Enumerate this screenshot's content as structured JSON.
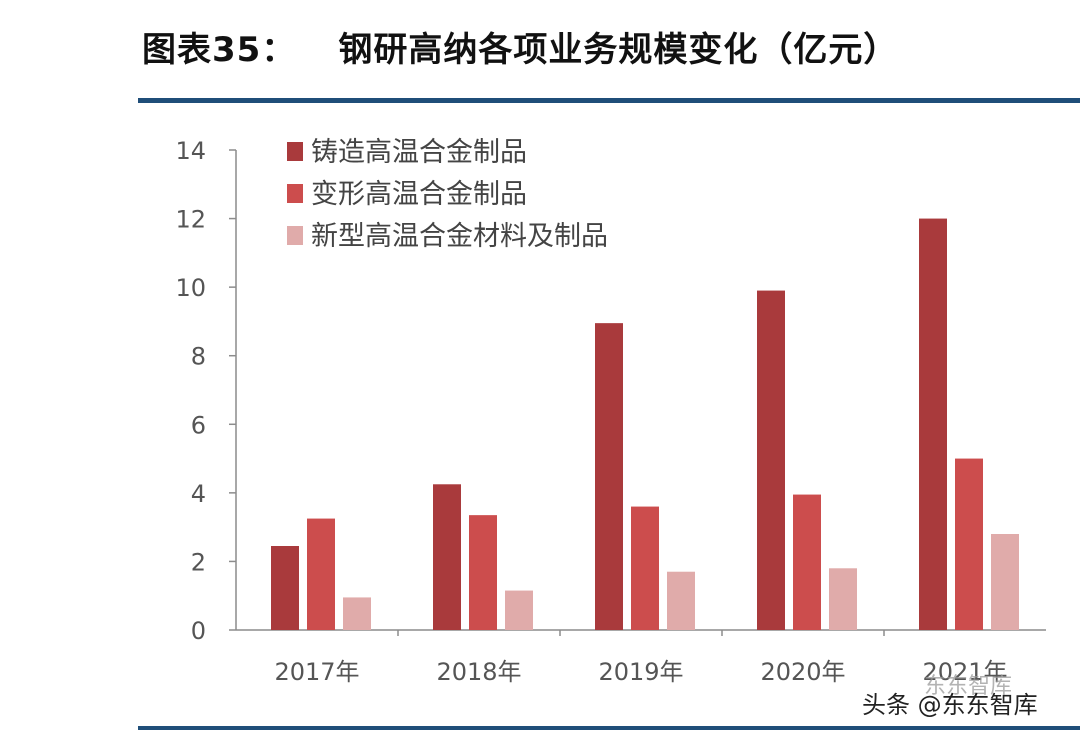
{
  "figure": {
    "number": "图表35：",
    "title": "钢研高纳各项业务规模变化（亿元）"
  },
  "chart_data": {
    "type": "bar",
    "categories": [
      "2017年",
      "2018年",
      "2019年",
      "2020年",
      "2021年"
    ],
    "series": [
      {
        "name": "铸造高温合金制品",
        "color": "#a93a3c",
        "values": [
          2.45,
          4.25,
          8.95,
          9.9,
          12.0
        ]
      },
      {
        "name": "变形高温合金制品",
        "color": "#cc4d4d",
        "values": [
          3.25,
          3.35,
          3.6,
          3.95,
          5.0
        ]
      },
      {
        "name": "新型高温合金材料及制品",
        "color": "#e0abaa",
        "values": [
          0.95,
          1.15,
          1.7,
          1.8,
          2.8
        ]
      }
    ],
    "ylim": [
      0,
      14
    ],
    "yticks": [
      "0",
      "2",
      "4",
      "6",
      "8",
      "10",
      "12",
      "14"
    ],
    "xlabel": "",
    "ylabel": "",
    "legend_position": "top-left",
    "grid": false
  },
  "watermark": {
    "main": "头条 @东东智库",
    "faint": "东东智库"
  }
}
